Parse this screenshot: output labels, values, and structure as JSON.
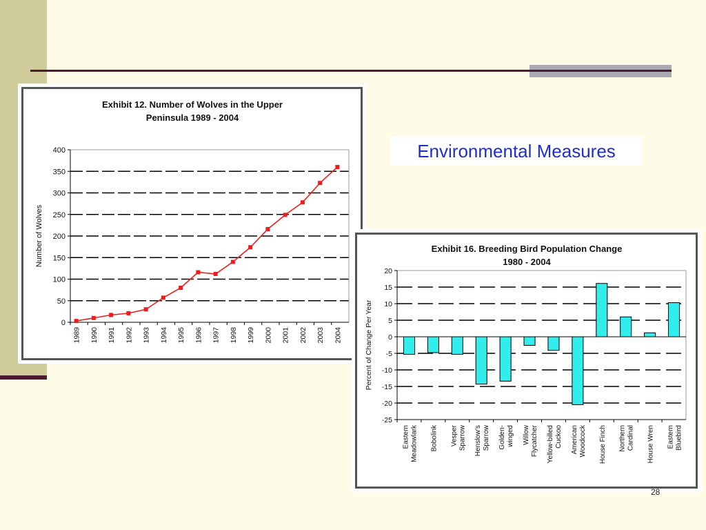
{
  "slide": {
    "title": "Environmental Measures",
    "page_number": "28",
    "colors": {
      "background": "#fefce6",
      "sidebar": "#cfcb9b",
      "rule": "#4a1a33",
      "title_text": "#1f2fc8"
    }
  },
  "chart_data": [
    {
      "type": "line",
      "title": "Exhibit 12.  Number of Wolves in the Upper\nPeninsula 1989 - 2004",
      "ylabel": "Number of Wolves",
      "xlabel": "",
      "ylim": [
        0,
        400
      ],
      "yticks": [
        0,
        50,
        100,
        150,
        200,
        250,
        300,
        350,
        400
      ],
      "grid": true,
      "x": [
        "1989",
        "1990",
        "1991",
        "1992",
        "1993",
        "1994",
        "1995",
        "1996",
        "1997",
        "1998",
        "1999",
        "2000",
        "2001",
        "2002",
        "2003",
        "2004"
      ],
      "series": [
        {
          "values": [
            3,
            10,
            17,
            21,
            30,
            57,
            80,
            116,
            112,
            140,
            174,
            216,
            249,
            278,
            323,
            360
          ],
          "color": "#ee1c1c"
        }
      ]
    },
    {
      "type": "bar",
      "title": "Exhibit 16.  Breeding Bird Population Change\n1980 - 2004",
      "ylabel": "Percent of Change Per Year",
      "xlabel": "",
      "ylim": [
        -25,
        20
      ],
      "yticks": [
        -25,
        -20,
        -15,
        -10,
        -5,
        0,
        5,
        10,
        15,
        20
      ],
      "grid": true,
      "categories": [
        "Eastern\nMeadowlark",
        "Bobolink",
        "Vesper\nSparrow",
        "Henslow's\nSparrow",
        "Golden-\nwinged",
        "Willow\nFlycatcher",
        "Yellow-billed\nCuckoo",
        "American\nWoodcock",
        "House Finch",
        "Northern\nCardinal",
        "House Wren",
        "Eastern\nBluebird"
      ],
      "series": [
        {
          "values": [
            -5.3,
            -4.8,
            -5.3,
            -14.3,
            -13.4,
            -2.6,
            -4.1,
            -20.5,
            16.1,
            6.0,
            1.2,
            10.3
          ],
          "color": "#33ecec"
        }
      ]
    }
  ]
}
